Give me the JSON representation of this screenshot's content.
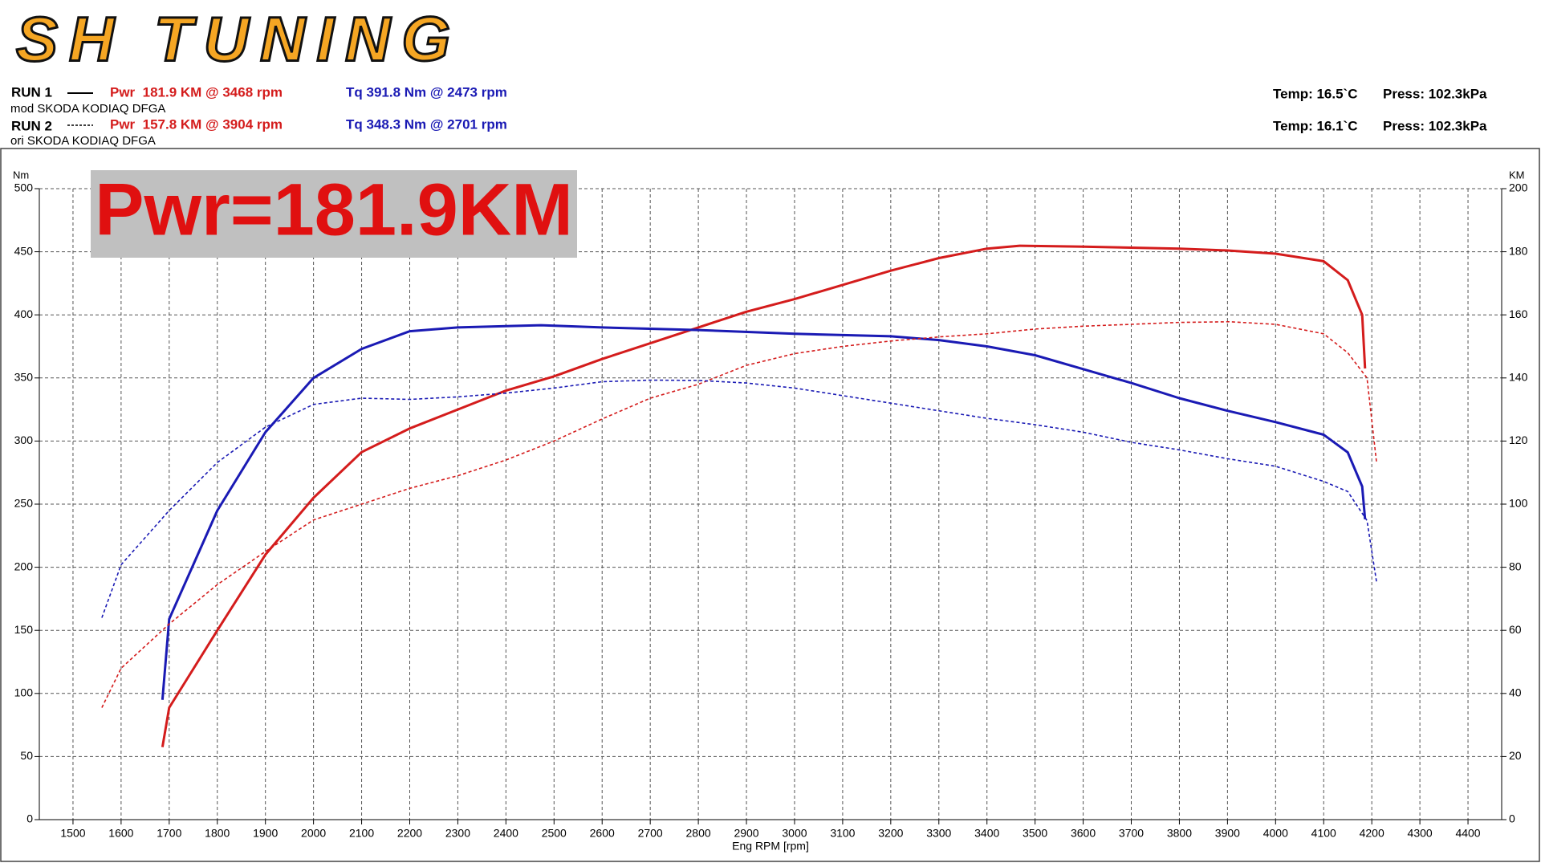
{
  "header": {
    "logo": "SH TUNING",
    "runs": [
      {
        "label": "RUN 1",
        "power": "Pwr  181.9 KM @ 3468 rpm",
        "torque": "Tq 391.8 Nm @ 2473 rpm",
        "car": "mod SKODA KODIAQ DFGA",
        "temp": "Temp: 16.5`C",
        "press": "Press: 102.3kPa"
      },
      {
        "label": "RUN 2",
        "power": "Pwr  157.8 KM @ 3904 rpm",
        "torque": "Tq 348.3 Nm @ 2701 rpm",
        "car": "ori SKODA KODIAQ DFGA",
        "temp": "Temp: 16.1`C",
        "press": "Press: 102.3kPa"
      }
    ]
  },
  "chart_data": {
    "type": "line",
    "annotation": "Pwr=181.9KM",
    "x_label": "Eng RPM [rpm]",
    "y_label": "Nm",
    "y2_label": "KM",
    "xlim": [
      1430,
      4470
    ],
    "xticks": [
      1500,
      1600,
      1700,
      1800,
      1900,
      2000,
      2100,
      2200,
      2300,
      2400,
      2500,
      2600,
      2700,
      2800,
      2900,
      3000,
      3100,
      3200,
      3300,
      3400,
      3500,
      3600,
      3700,
      3800,
      3900,
      4000,
      4100,
      4200,
      4300,
      4400
    ],
    "ylim": [
      0,
      500
    ],
    "yticks": [
      0,
      50,
      100,
      150,
      200,
      250,
      300,
      350,
      400,
      450,
      500
    ],
    "y2lim": [
      0,
      200
    ],
    "y2ticks": [
      0,
      20,
      40,
      60,
      80,
      100,
      120,
      140,
      160,
      180,
      200
    ],
    "grid": true,
    "series": [
      {
        "name": "RUN 1 Pwr",
        "color": "#d41c1c",
        "axis": "y2",
        "line_style": "solid",
        "x": [
          1686,
          1700,
          1800,
          1900,
          2000,
          2100,
          2200,
          2300,
          2400,
          2500,
          2600,
          2700,
          2800,
          2900,
          3000,
          3100,
          3200,
          3300,
          3400,
          3468,
          3600,
          3800,
          3900,
          4000,
          4100,
          4150,
          4180,
          4186
        ],
        "values": [
          23,
          35.5,
          60,
          84,
          102,
          116.5,
          124,
          130,
          136,
          140.5,
          146,
          151,
          156,
          161,
          165,
          169.5,
          174,
          178,
          181,
          181.9,
          181.6,
          181,
          180.4,
          179.4,
          177,
          171,
          160,
          143
        ]
      },
      {
        "name": "RUN 1 Tq",
        "color": "#1a1ab4",
        "axis": "y",
        "line_style": "solid",
        "x": [
          1686,
          1700,
          1800,
          1900,
          2000,
          2100,
          2200,
          2300,
          2400,
          2473,
          2600,
          2800,
          3000,
          3200,
          3300,
          3400,
          3500,
          3600,
          3700,
          3800,
          3900,
          4000,
          4100,
          4150,
          4180,
          4186
        ],
        "values": [
          95,
          159,
          245,
          307,
          350,
          373,
          387,
          390,
          391,
          391.8,
          390,
          388,
          385,
          383,
          380,
          375,
          368,
          357,
          346,
          334,
          324,
          315,
          305,
          291,
          264,
          238
        ]
      },
      {
        "name": "RUN 2 Pwr",
        "color": "#d41c1c",
        "axis": "y2",
        "line_style": "dashed",
        "x": [
          1560,
          1600,
          1700,
          1800,
          1900,
          2000,
          2100,
          2200,
          2300,
          2400,
          2500,
          2600,
          2700,
          2800,
          2900,
          3000,
          3100,
          3200,
          3300,
          3400,
          3500,
          3600,
          3700,
          3800,
          3904,
          4000,
          4100,
          4150,
          4190,
          4210
        ],
        "values": [
          35.5,
          48,
          62,
          74.5,
          85,
          95,
          100,
          105,
          109,
          114,
          120,
          127,
          133.6,
          138,
          144,
          147.7,
          150,
          151.7,
          153,
          154,
          155.5,
          156.4,
          157,
          157.6,
          157.8,
          157,
          154,
          148,
          140,
          113
        ]
      },
      {
        "name": "RUN 2 Tq",
        "color": "#1a1ab4",
        "axis": "y",
        "line_style": "dashed",
        "x": [
          1560,
          1600,
          1700,
          1800,
          1900,
          2000,
          2100,
          2200,
          2300,
          2400,
          2500,
          2600,
          2701,
          2800,
          2900,
          3000,
          3100,
          3200,
          3300,
          3400,
          3500,
          3600,
          3700,
          3800,
          3900,
          4000,
          4100,
          4150,
          4190,
          4210
        ],
        "values": [
          160,
          202,
          245,
          283,
          311,
          329,
          334,
          333,
          335,
          338,
          342,
          347,
          348.3,
          348,
          346,
          342,
          336,
          330,
          324,
          318,
          313,
          307,
          299,
          293,
          286,
          280,
          268,
          260,
          237,
          188
        ]
      }
    ]
  }
}
